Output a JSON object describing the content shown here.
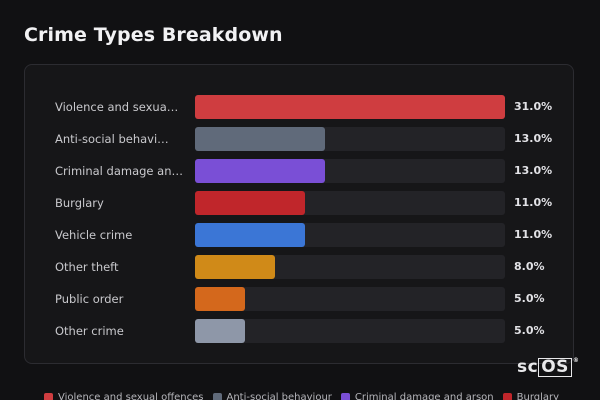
{
  "title": "Crime Types Breakdown",
  "brand": {
    "letters": "sc",
    "boxed": "OS",
    "mark": "®"
  },
  "chart_data": {
    "type": "bar",
    "orientation": "horizontal",
    "title": "Crime Types Breakdown",
    "xlim": [
      0,
      31
    ],
    "categories": [
      "Violence and sexua…",
      "Anti-social behavi…",
      "Criminal damage an…",
      "Burglary",
      "Vehicle crime",
      "Other theft",
      "Public order",
      "Other crime"
    ],
    "values": [
      31.0,
      13.0,
      13.0,
      11.0,
      11.0,
      8.0,
      5.0,
      5.0
    ],
    "value_labels": [
      "31.0%",
      "13.0%",
      "13.0%",
      "11.0%",
      "11.0%",
      "8.0%",
      "5.0%",
      "5.0%"
    ],
    "colors": [
      "#cf3d40",
      "#606a7a",
      "#7a4fd6",
      "#c0262b",
      "#3b76d6",
      "#d08a18",
      "#d4681c",
      "#8e97a8"
    ],
    "legend_placement": "bottom",
    "legend": [
      {
        "label": "Violence and sexual offences",
        "color": "#cf3d40"
      },
      {
        "label": "Anti-social behaviour",
        "color": "#606a7a"
      },
      {
        "label": "Criminal damage and arson",
        "color": "#7a4fd6"
      },
      {
        "label": "Burglary",
        "color": "#c0262b"
      }
    ]
  }
}
